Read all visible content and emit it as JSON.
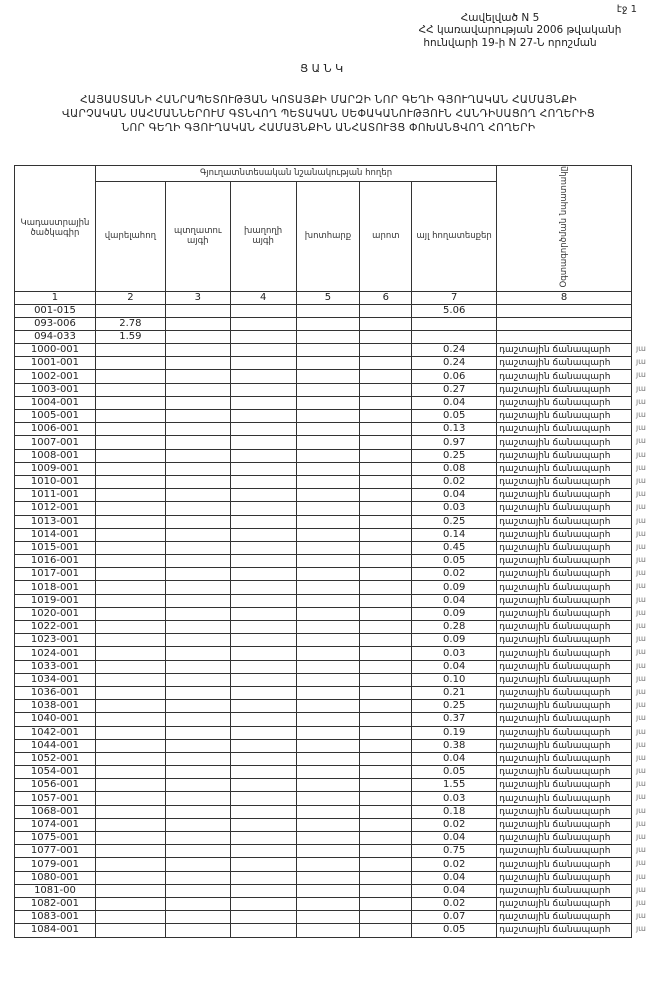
{
  "page_label": "էջ 1",
  "annex": {
    "line1": "Հավելված N 5",
    "line2": "ՀՀ կառավարության 2006 թվականի",
    "line3": "հունվարի 19-ի N 27-Ն որոշման"
  },
  "heading": "Ց Ա Ն Կ",
  "title": [
    "ՀԱՅԱՍՏԱՆԻ ՀԱՆՐԱՊԵՏՈՒԹՅԱՆ ԿՈՏԱՅՔԻ ՄԱՐԶԻ ՆՈՐ ԳԵՂԻ ԳՅՈՒՂԱԿԱՆ ՀԱՄԱՅՆՔԻ",
    "ՎԱՐՉԱԿԱՆ ՍԱՀՄԱՆՆԵՐՈՒՄ ԳՏՆՎՈՂ ՊԵՏԱԿԱՆ ՍԵՓԱԿԱՆՈՒԹՅՈՒՆ ՀԱՆԴԻՍԱՑՈՂ ՀՈՂԵՐԻՑ",
    "ՆՈՐ ԳԵՂԻ ԳՅՈՒՂԱԿԱՆ ՀԱՄԱՅՆՔԻՆ ԱՆՀԱՏՈՒՅՑ ՓՈԽԱՆՑՎՈՂ ՀՈՂԵՐԻ"
  ],
  "table": {
    "group_header": "Գյուղատնտեսական նշանակության հողեր",
    "col_code": "Կադաստրային ծածկագիր",
    "cols": [
      "վարելահող",
      "պտղատու այգի",
      "խաղողի այգի",
      "խոտհարք",
      "արոտ",
      "այլ հողատեսքեր"
    ],
    "col8": "Օգտագործման նպատակը",
    "numbers": [
      "1",
      "2",
      "3",
      "4",
      "5",
      "6",
      "7",
      "8"
    ],
    "margin_mark": "յա",
    "rows": [
      {
        "code": "001-015",
        "c2": "",
        "c7": "5.06",
        "c8": ""
      },
      {
        "code": "093-006",
        "c2": "2.78",
        "c7": "",
        "c8": ""
      },
      {
        "code": "094-033",
        "c2": "1.59",
        "c7": "",
        "c8": ""
      },
      {
        "code": "1000-001",
        "c2": "",
        "c7": "0.24",
        "c8": "դաշտային ճանապարհ"
      },
      {
        "code": "1001-001",
        "c2": "",
        "c7": "0.24",
        "c8": "դաշտային ճանապարհ"
      },
      {
        "code": "1002-001",
        "c2": "",
        "c7": "0.06",
        "c8": "դաշտային ճանապարհ"
      },
      {
        "code": "1003-001",
        "c2": "",
        "c7": "0.27",
        "c8": "դաշտային ճանապարհ"
      },
      {
        "code": "1004-001",
        "c2": "",
        "c7": "0.04",
        "c8": "դաշտային ճանապարհ"
      },
      {
        "code": "1005-001",
        "c2": "",
        "c7": "0.05",
        "c8": "դաշտային ճանապարհ"
      },
      {
        "code": "1006-001",
        "c2": "",
        "c7": "0.13",
        "c8": "դաշտային ճանապարհ"
      },
      {
        "code": "1007-001",
        "c2": "",
        "c7": "0.97",
        "c8": "դաշտային ճանապարհ"
      },
      {
        "code": "1008-001",
        "c2": "",
        "c7": "0.25",
        "c8": "դաշտային ճանապարհ"
      },
      {
        "code": "1009-001",
        "c2": "",
        "c7": "0.08",
        "c8": "դաշտային ճանապարհ"
      },
      {
        "code": "1010-001",
        "c2": "",
        "c7": "0.02",
        "c8": "դաշտային ճանապարհ"
      },
      {
        "code": "1011-001",
        "c2": "",
        "c7": "0.04",
        "c8": "դաշտային ճանապարհ"
      },
      {
        "code": "1012-001",
        "c2": "",
        "c7": "0.03",
        "c8": "դաշտային ճանապարհ"
      },
      {
        "code": "1013-001",
        "c2": "",
        "c7": "0.25",
        "c8": "դաշտային ճանապարհ"
      },
      {
        "code": "1014-001",
        "c2": "",
        "c7": "0.14",
        "c8": "դաշտային ճանապարհ"
      },
      {
        "code": "1015-001",
        "c2": "",
        "c7": "0.45",
        "c8": "դաշտային ճանապարհ"
      },
      {
        "code": "1016-001",
        "c2": "",
        "c7": "0.05",
        "c8": "դաշտային ճանապարհ"
      },
      {
        "code": "1017-001",
        "c2": "",
        "c7": "0.02",
        "c8": "դաշտային ճանապարհ"
      },
      {
        "code": "1018-001",
        "c2": "",
        "c7": "0.09",
        "c8": "դաշտային ճանապարհ"
      },
      {
        "code": "1019-001",
        "c2": "",
        "c7": "0.04",
        "c8": "դաշտային ճանապարհ"
      },
      {
        "code": "1020-001",
        "c2": "",
        "c7": "0.09",
        "c8": "դաշտային ճանապարհ"
      },
      {
        "code": "1022-001",
        "c2": "",
        "c7": "0.28",
        "c8": "դաշտային ճանապարհ"
      },
      {
        "code": "1023-001",
        "c2": "",
        "c7": "0.09",
        "c8": "դաշտային ճանապարհ"
      },
      {
        "code": "1024-001",
        "c2": "",
        "c7": "0.03",
        "c8": "դաշտային ճանապարհ"
      },
      {
        "code": "1033-001",
        "c2": "",
        "c7": "0.04",
        "c8": "դաշտային ճանապարհ"
      },
      {
        "code": "1034-001",
        "c2": "",
        "c7": "0.10",
        "c8": "դաշտային ճանապարհ"
      },
      {
        "code": "1036-001",
        "c2": "",
        "c7": "0.21",
        "c8": "դաշտային ճանապարհ"
      },
      {
        "code": "1038-001",
        "c2": "",
        "c7": "0.25",
        "c8": "դաշտային ճանապարհ"
      },
      {
        "code": "1040-001",
        "c2": "",
        "c7": "0.37",
        "c8": "դաշտային ճանապարհ"
      },
      {
        "code": "1042-001",
        "c2": "",
        "c7": "0.19",
        "c8": "դաշտային ճանապարհ"
      },
      {
        "code": "1044-001",
        "c2": "",
        "c7": "0.38",
        "c8": "դաշտային ճանապարհ"
      },
      {
        "code": "1052-001",
        "c2": "",
        "c7": "0.04",
        "c8": "դաշտային ճանապարհ"
      },
      {
        "code": "1054-001",
        "c2": "",
        "c7": "0.05",
        "c8": "դաշտային ճանապարհ"
      },
      {
        "code": "1056-001",
        "c2": "",
        "c7": "1.55",
        "c8": "դաշտային ճանապարհ"
      },
      {
        "code": "1057-001",
        "c2": "",
        "c7": "0.03",
        "c8": "դաշտային ճանապարհ"
      },
      {
        "code": "1068-001",
        "c2": "",
        "c7": "0.18",
        "c8": "դաշտային ճանապարհ"
      },
      {
        "code": "1074-001",
        "c2": "",
        "c7": "0.02",
        "c8": "դաշտային ճանապարհ"
      },
      {
        "code": "1075-001",
        "c2": "",
        "c7": "0.04",
        "c8": "դաշտային ճանապարհ"
      },
      {
        "code": "1077-001",
        "c2": "",
        "c7": "0.75",
        "c8": "դաշտային ճանապարհ"
      },
      {
        "code": "1079-001",
        "c2": "",
        "c7": "0.02",
        "c8": "դաշտային ճանապարհ"
      },
      {
        "code": "1080-001",
        "c2": "",
        "c7": "0.04",
        "c8": "դաշտային ճանապարհ"
      },
      {
        "code": "1081-00",
        "c2": "",
        "c7": "0.04",
        "c8": "դաշտային ճանապարհ"
      },
      {
        "code": "1082-001",
        "c2": "",
        "c7": "0.02",
        "c8": "դաշտային ճանապարհ"
      },
      {
        "code": "1083-001",
        "c2": "",
        "c7": "0.07",
        "c8": "դաշտային ճանապարհ"
      },
      {
        "code": "1084-001",
        "c2": "",
        "c7": "0.05",
        "c8": "դաշտային ճանապարհ"
      }
    ]
  }
}
